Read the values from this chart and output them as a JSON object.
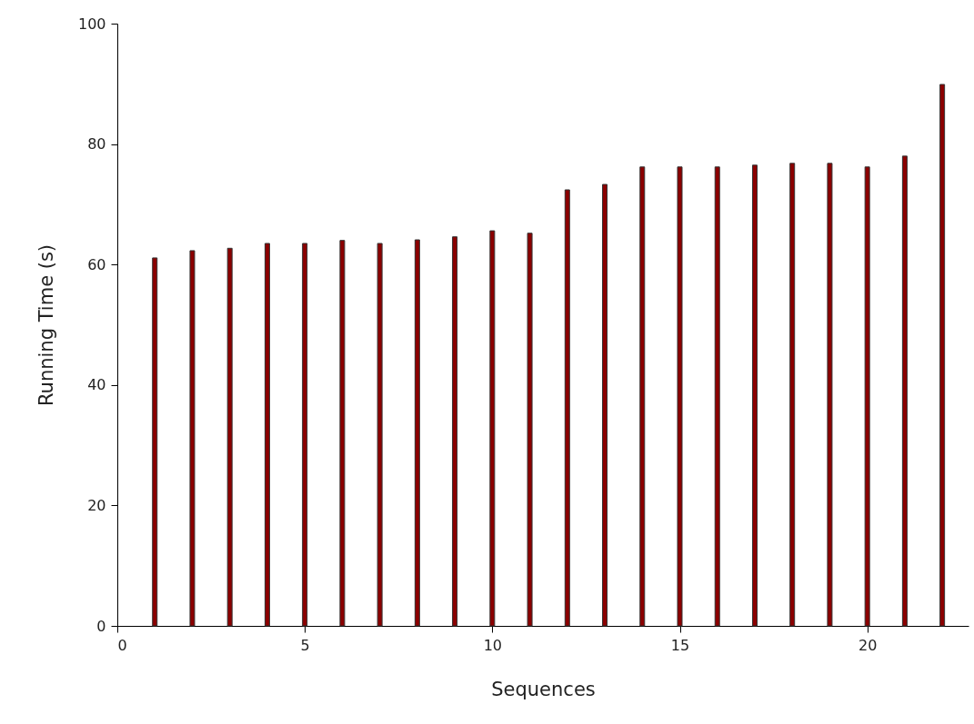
{
  "chart_data": {
    "type": "bar",
    "xlabel": "Sequences",
    "ylabel": "Running Time (s)",
    "x": [
      1,
      2,
      3,
      4,
      5,
      6,
      7,
      8,
      9,
      10,
      11,
      12,
      13,
      14,
      15,
      16,
      17,
      18,
      19,
      20,
      21,
      22
    ],
    "values": [
      61.1,
      62.3,
      62.7,
      63.5,
      63.5,
      64.0,
      63.5,
      64.1,
      64.6,
      65.6,
      65.2,
      72.4,
      73.3,
      76.2,
      76.2,
      76.2,
      76.5,
      76.8,
      76.8,
      76.2,
      78.0,
      89.9
    ],
    "color": "#8b0000",
    "xlim": [
      0,
      22.7
    ],
    "xticks": [
      0,
      5,
      10,
      15,
      20
    ],
    "ylim": [
      0,
      100
    ],
    "yticks": [
      0,
      20,
      40,
      60,
      80,
      100
    ],
    "grid": false
  }
}
